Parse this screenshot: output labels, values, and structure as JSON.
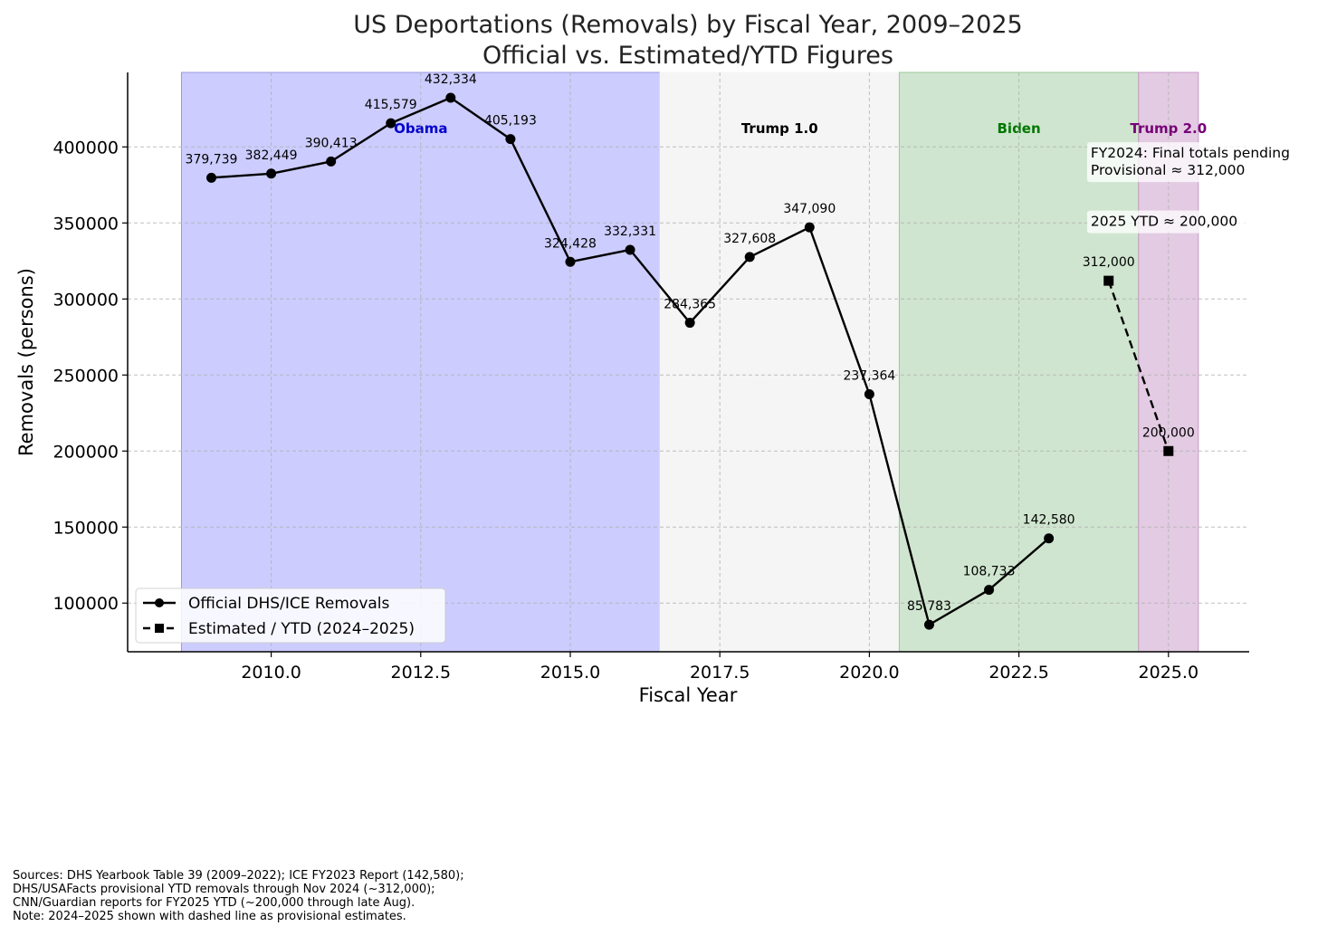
{
  "chart_data": {
    "type": "line",
    "title": "US Deportations (Removals) by Fiscal Year, 2009–2025",
    "subtitle": "Official vs. Estimated/YTD Figures",
    "xlabel": "Fiscal Year",
    "ylabel": "Removals (persons)",
    "xlim": [
      2007.6,
      2026.35
    ],
    "ylim": [
      68000,
      449000
    ],
    "xticks": [
      2010.0,
      2012.5,
      2015.0,
      2017.5,
      2020.0,
      2022.5,
      2025.0
    ],
    "xtick_labels": [
      "2010.0",
      "2012.5",
      "2015.0",
      "2017.5",
      "2020.0",
      "2022.5",
      "2025.0"
    ],
    "yticks": [
      100000,
      150000,
      200000,
      250000,
      300000,
      350000,
      400000
    ],
    "ytick_labels": [
      "100000",
      "150000",
      "200000",
      "250000",
      "300000",
      "350000",
      "400000"
    ],
    "grid": true,
    "legend_position": "lower-left",
    "eras": [
      {
        "name": "Obama",
        "start": 2008.5,
        "end": 2016.5,
        "color": "#ccccff",
        "edge": "#9999dd",
        "text_color": "#0000cc"
      },
      {
        "name": "Trump 1.0",
        "start": 2016.5,
        "end": 2020.5,
        "color": "#f5f5f5",
        "edge": "#f5f5f5",
        "text_color": "#000000"
      },
      {
        "name": "Biden",
        "start": 2020.5,
        "end": 2024.5,
        "color": "#cfe5cf",
        "edge": "#99c899",
        "text_color": "#007700"
      },
      {
        "name": "Trump 2.0",
        "start": 2024.5,
        "end": 2025.5,
        "color": "#e3cbe3",
        "edge": "#c89ac8",
        "text_color": "#770077"
      }
    ],
    "series": [
      {
        "name": "Official DHS/ICE Removals",
        "style": "solid",
        "marker": "circle",
        "x": [
          2009,
          2010,
          2011,
          2012,
          2013,
          2014,
          2015,
          2016,
          2017,
          2018,
          2019,
          2020,
          2021,
          2022,
          2023
        ],
        "values": [
          379739,
          382449,
          390413,
          415579,
          432334,
          405193,
          324428,
          332331,
          284365,
          327608,
          347090,
          237364,
          85783,
          108733,
          142580
        ],
        "labels": [
          "379,739",
          "382,449",
          "390,413",
          "415,579",
          "432,334",
          "405,193",
          "324,428",
          "332,331",
          "284,365",
          "327,608",
          "347,090",
          "237,364",
          "85,783",
          "108,733",
          "142,580"
        ]
      },
      {
        "name": "Estimated / YTD (2024–2025)",
        "style": "dashed",
        "marker": "square",
        "x": [
          2024,
          2025
        ],
        "values": [
          312000,
          200000
        ],
        "labels": [
          "312,000",
          "200,000"
        ]
      }
    ],
    "annotations": [
      {
        "lines": [
          "FY2024: Final totals pending",
          "Provisional ≈ 312,000"
        ],
        "x": 2023.7,
        "y": 393000
      },
      {
        "lines": [
          "2025 YTD ≈ 200,000"
        ],
        "x": 2023.7,
        "y": 348000
      }
    ]
  },
  "sources": [
    "Sources: DHS Yearbook Table 39 (2009–2022); ICE FY2023 Report (142,580);",
    "DHS/USAFacts provisional YTD removals through Nov 2024 (~312,000);",
    "CNN/Guardian reports for FY2025 YTD (~200,000 through late Aug).",
    "Note: 2024–2025 shown with dashed line as provisional estimates."
  ]
}
